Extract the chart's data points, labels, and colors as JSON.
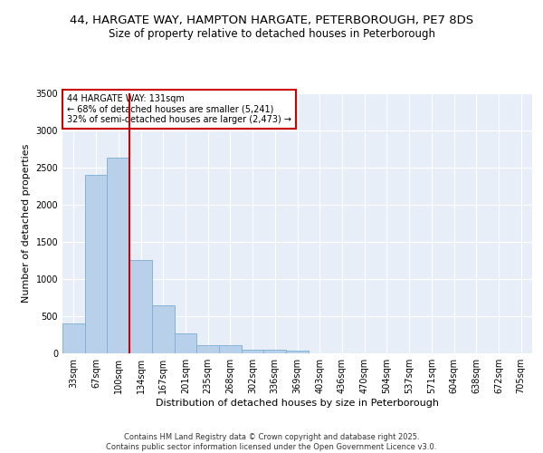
{
  "title_line1": "44, HARGATE WAY, HAMPTON HARGATE, PETERBOROUGH, PE7 8DS",
  "title_line2": "Size of property relative to detached houses in Peterborough",
  "xlabel": "Distribution of detached houses by size in Peterborough",
  "ylabel": "Number of detached properties",
  "categories": [
    "33sqm",
    "67sqm",
    "100sqm",
    "134sqm",
    "167sqm",
    "201sqm",
    "235sqm",
    "268sqm",
    "302sqm",
    "336sqm",
    "369sqm",
    "403sqm",
    "436sqm",
    "470sqm",
    "504sqm",
    "537sqm",
    "571sqm",
    "604sqm",
    "638sqm",
    "672sqm",
    "705sqm"
  ],
  "values": [
    400,
    2400,
    2630,
    1250,
    640,
    270,
    110,
    110,
    50,
    45,
    40,
    0,
    0,
    0,
    0,
    0,
    0,
    0,
    0,
    0,
    0
  ],
  "bar_color": "#b8d0ea",
  "bar_edge_color": "#7aaed4",
  "vline_color": "#cc0000",
  "annotation_text": "44 HARGATE WAY: 131sqm\n← 68% of detached houses are smaller (5,241)\n32% of semi-detached houses are larger (2,473) →",
  "annotation_box_color": "#ffffff",
  "annotation_box_edge": "#cc0000",
  "ylim": [
    0,
    3500
  ],
  "yticks": [
    0,
    500,
    1000,
    1500,
    2000,
    2500,
    3000,
    3500
  ],
  "bg_color": "#e8eef8",
  "grid_color": "#ffffff",
  "footer": "Contains HM Land Registry data © Crown copyright and database right 2025.\nContains public sector information licensed under the Open Government Licence v3.0.",
  "title_fontsize": 9.5,
  "subtitle_fontsize": 8.5,
  "axis_label_fontsize": 8,
  "tick_fontsize": 7,
  "footer_fontsize": 6
}
